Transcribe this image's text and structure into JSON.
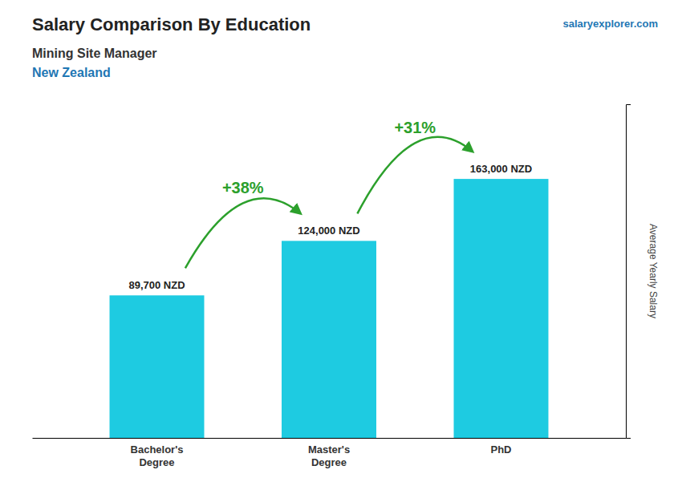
{
  "chart_data": {
    "type": "bar",
    "title": "Salary Comparison By Education",
    "subtitle": [
      "Mining Site Manager",
      "New Zealand"
    ],
    "source": "salaryexplorer.com",
    "ylabel": "Average Yearly Salary",
    "categories": [
      "Bachelor's\nDegree",
      "Master's\nDegree",
      "PhD"
    ],
    "values": [
      89700,
      124000,
      163000
    ],
    "value_labels": [
      "89,700 NZD",
      "124,000 NZD",
      "163,000 NZD"
    ],
    "data_labels": true,
    "annotations": [
      "+38%",
      "+31%"
    ],
    "color": "#1ECBE1",
    "ylim": [
      0,
      210000
    ],
    "tick_labels": "x"
  }
}
